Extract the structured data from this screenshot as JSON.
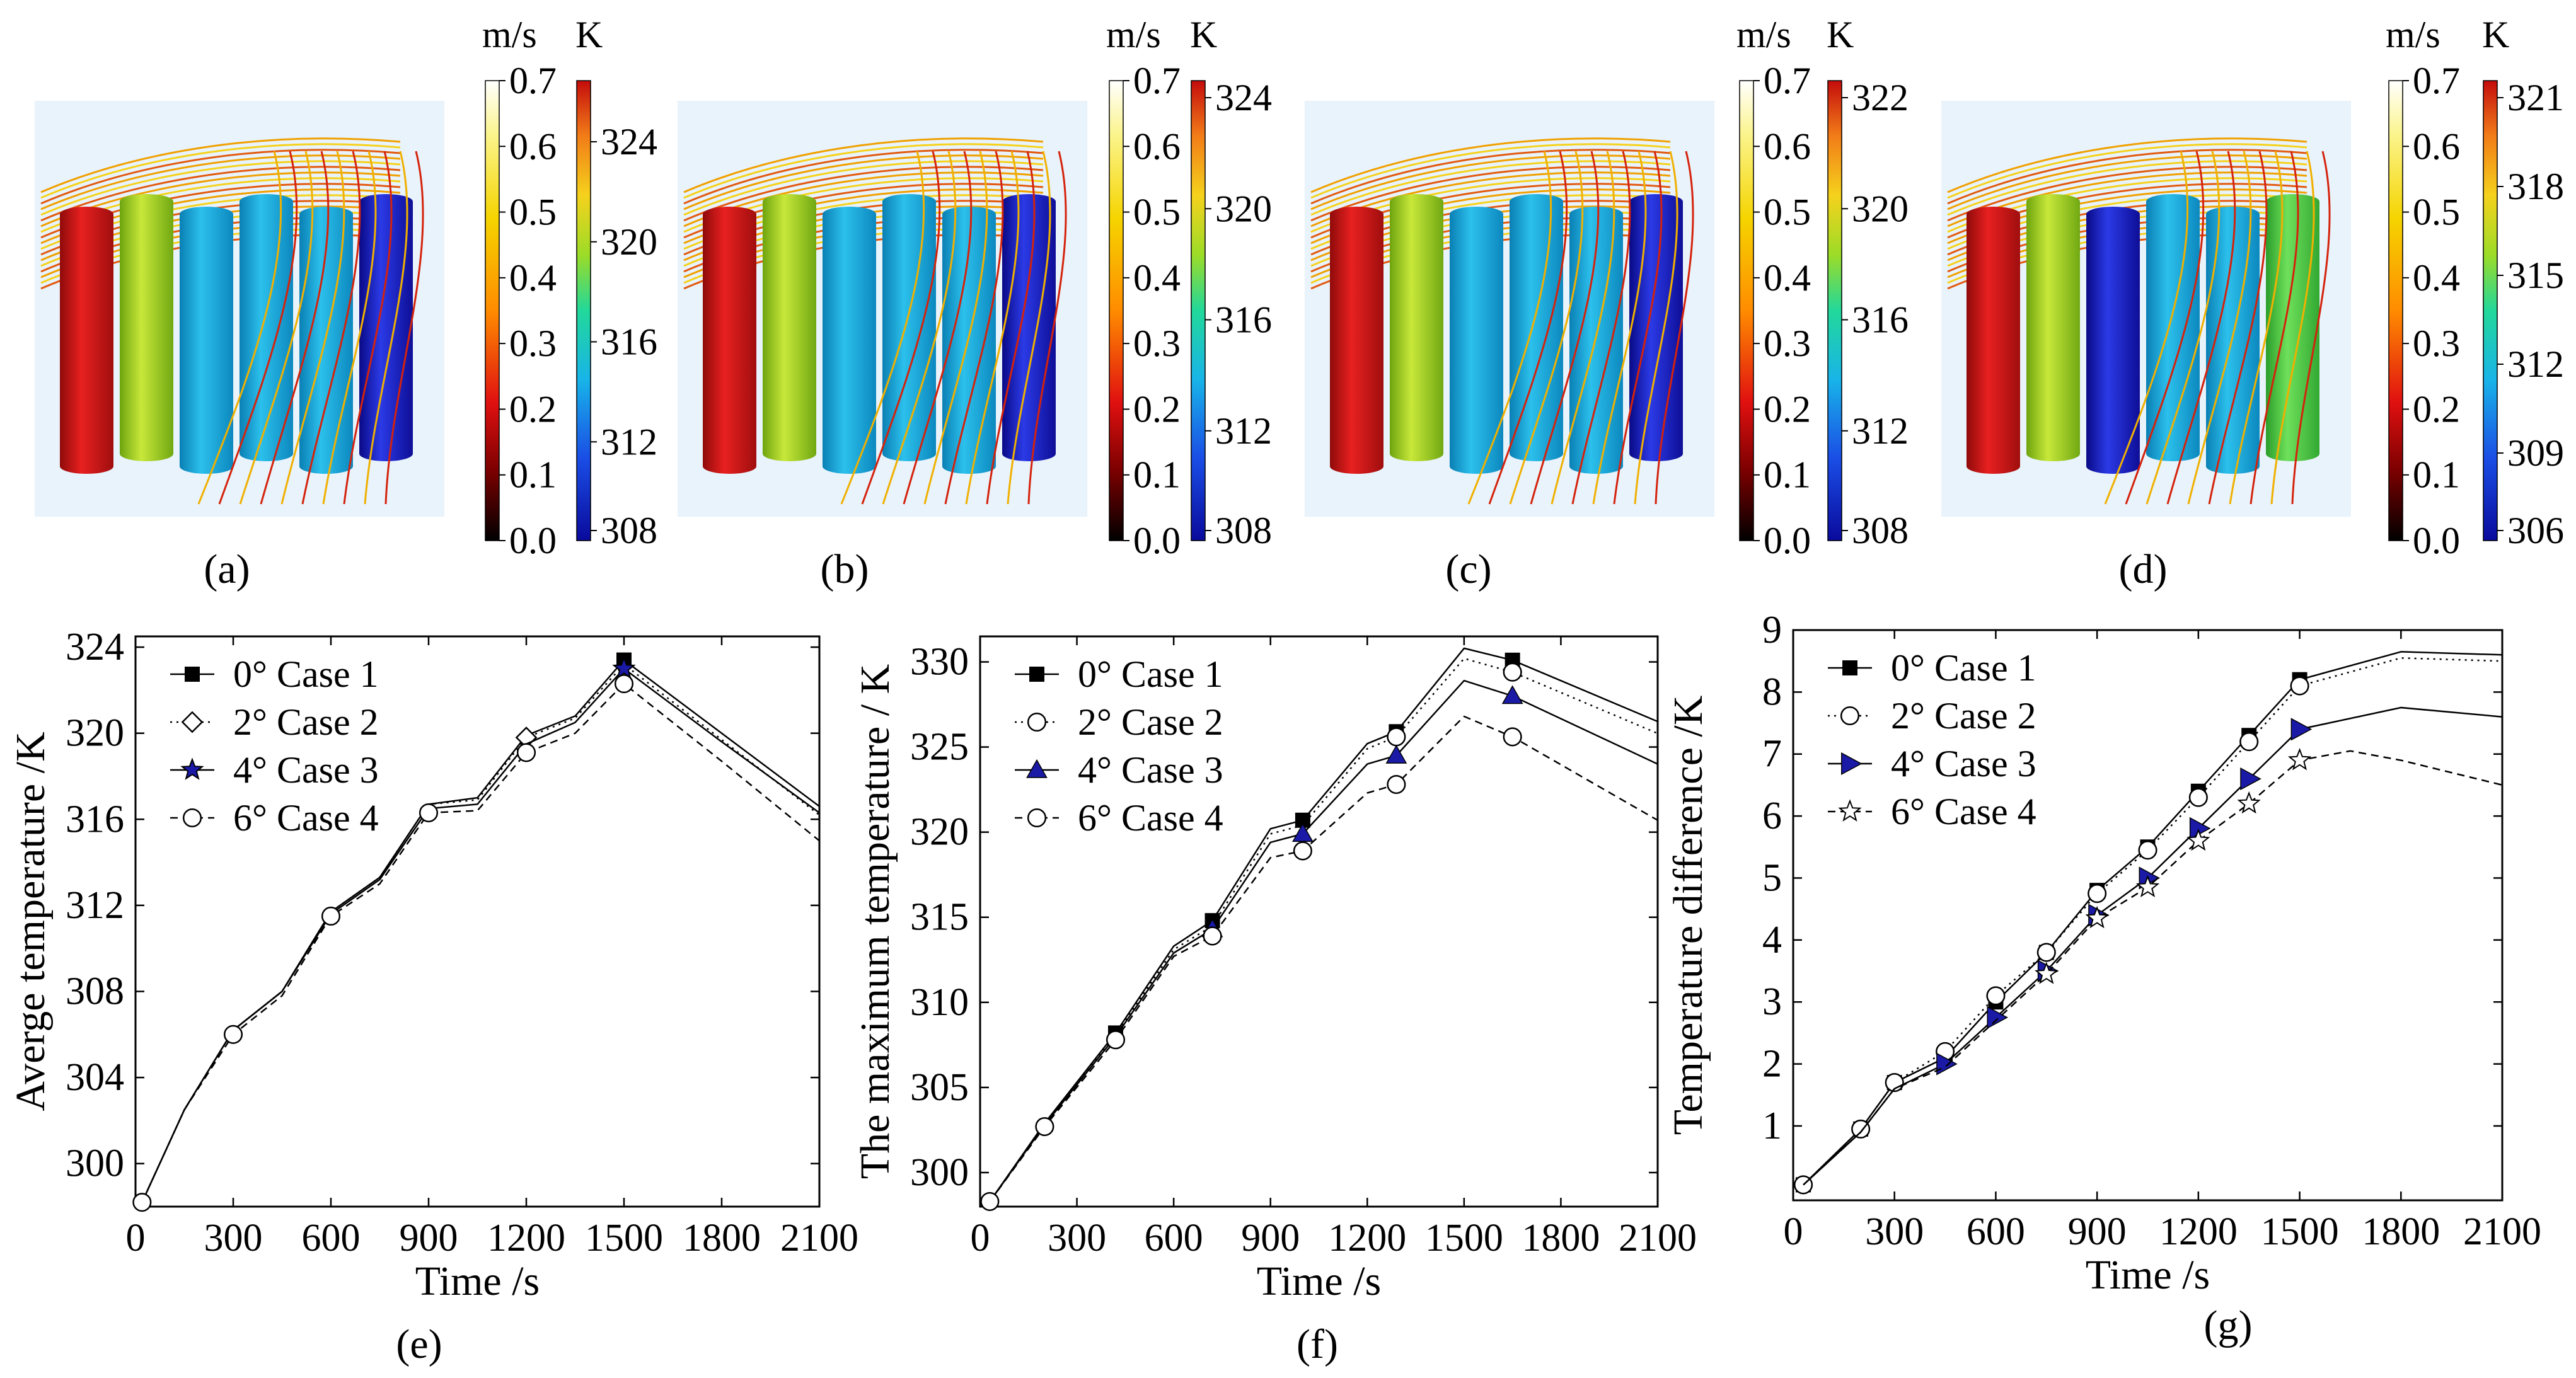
{
  "top_panels": [
    {
      "caption": "(a)",
      "velocity": {
        "unit": "m/s",
        "ticks": [
          "0.7",
          "0.6",
          "0.5",
          "0.4",
          "0.3",
          "0.2",
          "0.1",
          "0.0"
        ]
      },
      "temperature": {
        "unit": "K",
        "ticks": [
          "324",
          "320",
          "316",
          "312",
          "308"
        ]
      }
    },
    {
      "caption": "(b)",
      "velocity": {
        "unit": "m/s",
        "ticks": [
          "0.7",
          "0.6",
          "0.5",
          "0.4",
          "0.3",
          "0.2",
          "0.1",
          "0.0"
        ]
      },
      "temperature": {
        "unit": "K",
        "ticks": [
          "324",
          "320",
          "316",
          "312",
          "308"
        ]
      }
    },
    {
      "caption": "(c)",
      "velocity": {
        "unit": "m/s",
        "ticks": [
          "0.7",
          "0.6",
          "0.5",
          "0.4",
          "0.3",
          "0.2",
          "0.1",
          "0.0"
        ]
      },
      "temperature": {
        "unit": "K",
        "ticks": [
          "322",
          "320",
          "316",
          "312",
          "308"
        ]
      }
    },
    {
      "caption": "(d)",
      "velocity": {
        "unit": "m/s",
        "ticks": [
          "0.7",
          "0.6",
          "0.5",
          "0.4",
          "0.3",
          "0.2",
          "0.1",
          "0.0"
        ]
      },
      "temperature": {
        "unit": "K",
        "ticks": [
          "321",
          "318",
          "315",
          "312",
          "309",
          "306"
        ]
      }
    }
  ],
  "chart_data": [
    {
      "type": "line",
      "caption": "(e)",
      "title": "",
      "xlabel": "Time /s",
      "ylabel": "Averge temperature /K",
      "xlim": [
        0,
        2100
      ],
      "ylim": [
        298,
        324.5
      ],
      "xticks": [
        0,
        300,
        600,
        900,
        1200,
        1500,
        1800,
        2100
      ],
      "yticks": [
        300,
        304,
        308,
        312,
        316,
        320,
        324
      ],
      "legend_position": "top-left",
      "series": [
        {
          "name": "0° Case 1",
          "marker": "square",
          "line": "solid",
          "x": [
            20,
            150,
            300,
            450,
            600,
            750,
            900,
            1050,
            1200,
            1350,
            1500,
            1800,
            2100
          ],
          "y": [
            298.2,
            302.5,
            306.2,
            308.0,
            311.7,
            313.3,
            316.7,
            317.0,
            319.9,
            320.8,
            323.4,
            320.0,
            316.6
          ],
          "markers_x": [
            1500
          ],
          "markers_y": [
            323.4
          ]
        },
        {
          "name": "2° Case 2",
          "marker": "diamond",
          "line": "dotted",
          "x": [
            20,
            150,
            300,
            450,
            600,
            750,
            900,
            1050,
            1200,
            1350,
            1500,
            1800,
            2100
          ],
          "y": [
            298.2,
            302.5,
            306.2,
            308.0,
            311.7,
            313.3,
            316.7,
            316.9,
            319.8,
            320.7,
            323.2,
            319.7,
            316.2
          ],
          "markers_x": [
            1200
          ],
          "markers_y": [
            319.8
          ]
        },
        {
          "name": "4° Case 3",
          "marker": "star",
          "line": "solid",
          "x": [
            20,
            150,
            300,
            450,
            600,
            750,
            900,
            1050,
            1200,
            1350,
            1500,
            1800,
            2100
          ],
          "y": [
            298.2,
            302.5,
            306.2,
            308.0,
            311.6,
            313.2,
            316.5,
            316.7,
            319.5,
            320.5,
            323.0,
            319.6,
            316.3
          ],
          "markers_x": [
            1500
          ],
          "markers_y": [
            323.0
          ]
        },
        {
          "name": "6° Case 4",
          "marker": "circle",
          "line": "dashed",
          "x": [
            20,
            150,
            300,
            450,
            600,
            750,
            900,
            1050,
            1200,
            1350,
            1500,
            1800,
            2100
          ],
          "y": [
            298.2,
            302.5,
            306.0,
            307.8,
            311.5,
            313.0,
            316.3,
            316.4,
            319.1,
            320.0,
            322.3,
            318.7,
            315.0
          ],
          "markers_x": [
            20,
            300,
            600,
            900,
            1200,
            1500
          ],
          "markers_y": [
            298.2,
            306.0,
            311.5,
            316.3,
            319.1,
            322.3
          ]
        }
      ]
    },
    {
      "type": "line",
      "caption": "(f)",
      "title": "",
      "xlabel": "Time /s",
      "ylabel": "The maximum temperature / K",
      "xlim": [
        0,
        2100
      ],
      "ylim": [
        298,
        331.5
      ],
      "xticks": [
        0,
        300,
        600,
        900,
        1200,
        1500,
        1800,
        2100
      ],
      "yticks": [
        300,
        305,
        310,
        315,
        320,
        325,
        330
      ],
      "legend_position": "top-left",
      "series": [
        {
          "name": "0° Case 1",
          "marker": "square",
          "line": "solid",
          "x": [
            30,
            200,
            420,
            600,
            720,
            900,
            1000,
            1200,
            1290,
            1500,
            1650,
            2100
          ],
          "y": [
            298.3,
            302.9,
            308.2,
            313.3,
            314.8,
            320.2,
            320.7,
            325.2,
            325.9,
            330.8,
            330.1,
            326.5
          ],
          "markers_x": [
            420,
            720,
            1000,
            1290,
            1650
          ],
          "markers_y": [
            308.2,
            314.8,
            320.7,
            325.9,
            330.1
          ]
        },
        {
          "name": "2° Case 2",
          "marker": "circle",
          "line": "dotted",
          "x": [
            30,
            200,
            420,
            600,
            720,
            900,
            1000,
            1200,
            1290,
            1500,
            1650,
            2100
          ],
          "y": [
            298.3,
            302.9,
            308.1,
            313.1,
            314.5,
            319.9,
            320.4,
            324.9,
            325.6,
            330.2,
            329.4,
            325.8
          ],
          "markers_x": [
            1290,
            1650
          ],
          "markers_y": [
            325.6,
            329.4
          ]
        },
        {
          "name": "4° Case 3",
          "marker": "triangle",
          "line": "solid",
          "x": [
            30,
            200,
            420,
            600,
            720,
            900,
            1000,
            1200,
            1290,
            1500,
            1650,
            2100
          ],
          "y": [
            298.3,
            302.8,
            308.0,
            312.9,
            314.3,
            319.4,
            319.9,
            324.0,
            324.5,
            328.9,
            328.0,
            324.0
          ],
          "markers_x": [
            720,
            1000,
            1290,
            1650
          ],
          "markers_y": [
            314.3,
            319.9,
            324.5,
            328.0
          ]
        },
        {
          "name": "6° Case 4",
          "marker": "circle",
          "line": "dashed",
          "x": [
            30,
            200,
            420,
            600,
            720,
            900,
            1000,
            1200,
            1290,
            1500,
            1650,
            2100
          ],
          "y": [
            298.3,
            302.7,
            307.8,
            312.7,
            313.9,
            318.5,
            318.9,
            322.3,
            322.8,
            326.8,
            325.6,
            320.7
          ],
          "markers_x": [
            30,
            200,
            420,
            720,
            1000,
            1290,
            1650
          ],
          "markers_y": [
            298.3,
            302.7,
            307.8,
            313.9,
            318.9,
            322.8,
            325.6
          ]
        }
      ]
    },
    {
      "type": "line",
      "caption": "(g)",
      "title": "",
      "xlabel": "Time /s",
      "ylabel": "Temperature difference /K",
      "xlim": [
        0,
        2100
      ],
      "ylim": [
        -0.2,
        9.0
      ],
      "xticks": [
        0,
        300,
        600,
        900,
        1200,
        1500,
        1800,
        2100
      ],
      "yticks": [
        1,
        2,
        3,
        4,
        5,
        6,
        7,
        8,
        9
      ],
      "legend_position": "top-left",
      "series": [
        {
          "name": "0° Case 1",
          "marker": "square",
          "line": "solid",
          "x": [
            30,
            200,
            300,
            450,
            600,
            750,
            900,
            1050,
            1200,
            1350,
            1500,
            1800,
            2100
          ],
          "y": [
            0.05,
            0.95,
            1.7,
            2.1,
            3.0,
            3.8,
            4.8,
            5.5,
            6.4,
            7.3,
            8.2,
            8.65,
            8.6
          ],
          "markers_x": [
            30,
            200,
            300,
            450,
            600,
            750,
            900,
            1050,
            1200,
            1350,
            1500
          ],
          "markers_y": [
            0.05,
            0.95,
            1.7,
            2.1,
            3.0,
            3.8,
            4.8,
            5.5,
            6.4,
            7.3,
            8.2
          ]
        },
        {
          "name": "2° Case 2",
          "marker": "circle",
          "line": "dotted",
          "x": [
            30,
            200,
            300,
            450,
            600,
            750,
            900,
            1050,
            1200,
            1350,
            1500,
            1800,
            2100
          ],
          "y": [
            0.05,
            0.95,
            1.7,
            2.2,
            3.1,
            3.8,
            4.75,
            5.45,
            6.3,
            7.2,
            8.1,
            8.55,
            8.5
          ],
          "markers_x": [
            30,
            200,
            300,
            450,
            600,
            750,
            900,
            1050,
            1200,
            1350,
            1500
          ],
          "markers_y": [
            0.05,
            0.95,
            1.7,
            2.2,
            3.1,
            3.8,
            4.75,
            5.45,
            6.3,
            7.2,
            8.1
          ]
        },
        {
          "name": "4° Case 3",
          "marker": "triangle-right",
          "line": "solid",
          "x": [
            30,
            200,
            300,
            450,
            600,
            750,
            900,
            1050,
            1200,
            1350,
            1500,
            1800,
            2100
          ],
          "y": [
            0.05,
            0.9,
            1.6,
            2.0,
            2.75,
            3.5,
            4.4,
            5.0,
            5.8,
            6.6,
            7.4,
            7.75,
            7.6
          ],
          "markers_x": [
            450,
            600,
            750,
            900,
            1050,
            1200,
            1350,
            1500
          ],
          "markers_y": [
            2.0,
            2.75,
            3.5,
            4.4,
            5.0,
            5.8,
            6.6,
            7.4
          ]
        },
        {
          "name": "6° Case 4",
          "marker": "star-open",
          "line": "dashed",
          "x": [
            30,
            200,
            300,
            450,
            600,
            750,
            900,
            1050,
            1200,
            1350,
            1500,
            1650,
            1800,
            2100
          ],
          "y": [
            0.05,
            0.9,
            1.6,
            1.95,
            2.7,
            3.45,
            4.35,
            4.85,
            5.6,
            6.2,
            6.9,
            7.05,
            6.9,
            6.5
          ],
          "markers_x": [
            750,
            900,
            1050,
            1200,
            1350,
            1500
          ],
          "markers_y": [
            3.45,
            4.35,
            4.85,
            5.6,
            6.2,
            6.9
          ]
        }
      ]
    }
  ],
  "colors": {
    "marker_blue": "#1a1aa6",
    "axis": "#000000",
    "scene_bg": "#e9f3fb"
  }
}
